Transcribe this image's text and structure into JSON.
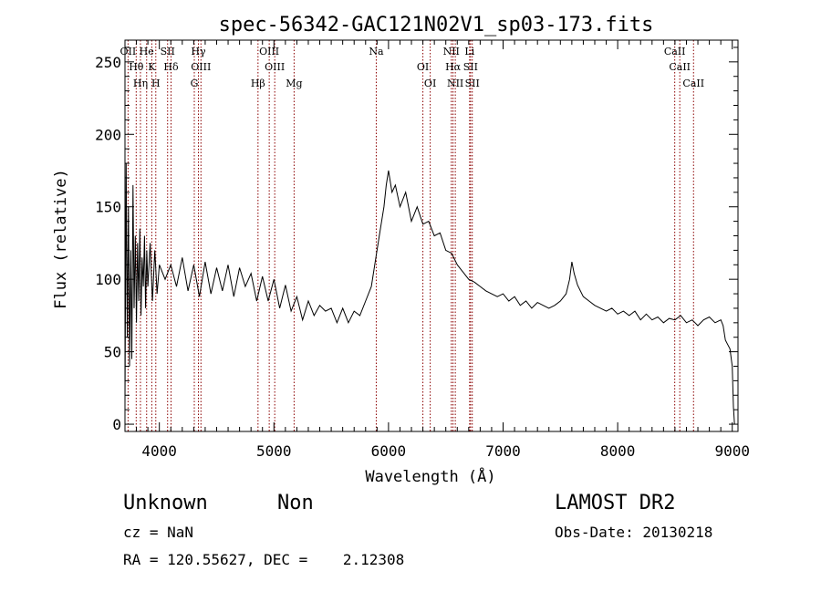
{
  "chart_data": {
    "type": "line",
    "title": "spec-56342-GAC121N02V1_sp03-173.fits",
    "xlabel": "Wavelength (Å)",
    "ylabel": "Flux (relative)",
    "xlim": [
      3700,
      9050
    ],
    "ylim": [
      -5,
      265
    ],
    "xticks": [
      4000,
      5000,
      6000,
      7000,
      8000,
      9000
    ],
    "yticks": [
      0,
      50,
      100,
      150,
      200,
      250
    ],
    "ytick_labels": [
      "0",
      "50",
      "100",
      "150",
      "200",
      "250"
    ],
    "grid": false,
    "line_color": "#000000",
    "marker_color": "#8b0000",
    "series": [
      {
        "x": [
          3700,
          3710,
          3720,
          3730,
          3740,
          3750,
          3760,
          3770,
          3780,
          3790,
          3800,
          3810,
          3820,
          3830,
          3840,
          3850,
          3860,
          3870,
          3880,
          3890,
          3900,
          3920,
          3940,
          3960,
          3980,
          4000,
          4050,
          4100,
          4150,
          4200,
          4250,
          4300,
          4350,
          4400,
          4450,
          4500,
          4550,
          4600,
          4650,
          4700,
          4750,
          4800,
          4850,
          4900,
          4950,
          5000,
          5050,
          5100,
          5150,
          5200,
          5250,
          5300,
          5350,
          5400,
          5450,
          5500,
          5550,
          5600,
          5650,
          5700,
          5750,
          5800,
          5850,
          5880,
          5920,
          5960,
          5980,
          6000,
          6030,
          6060,
          6100,
          6150,
          6200,
          6250,
          6300,
          6350,
          6400,
          6450,
          6500,
          6550,
          6600,
          6650,
          6700,
          6750,
          6800,
          6850,
          6900,
          6950,
          7000,
          7050,
          7100,
          7150,
          7200,
          7250,
          7300,
          7350,
          7400,
          7450,
          7500,
          7550,
          7580,
          7600,
          7620,
          7650,
          7700,
          7750,
          7800,
          7850,
          7900,
          7950,
          8000,
          8050,
          8100,
          8150,
          8200,
          8250,
          8300,
          8350,
          8400,
          8450,
          8500,
          8550,
          8600,
          8650,
          8700,
          8750,
          8800,
          8850,
          8900,
          8920,
          8940,
          8960,
          8980,
          9000,
          9010,
          9020
        ],
        "y": [
          15,
          180,
          60,
          150,
          40,
          120,
          45,
          165,
          80,
          130,
          70,
          125,
          85,
          135,
          75,
          115,
          95,
          130,
          80,
          120,
          95,
          125,
          85,
          120,
          90,
          110,
          100,
          110,
          95,
          115,
          92,
          110,
          88,
          112,
          90,
          108,
          92,
          110,
          88,
          108,
          95,
          104,
          85,
          102,
          85,
          100,
          80,
          96,
          78,
          88,
          72,
          85,
          75,
          82,
          78,
          80,
          70,
          80,
          70,
          78,
          75,
          85,
          95,
          110,
          130,
          150,
          165,
          175,
          160,
          165,
          150,
          160,
          140,
          150,
          138,
          140,
          130,
          132,
          120,
          118,
          110,
          105,
          100,
          98,
          95,
          92,
          90,
          88,
          90,
          85,
          88,
          82,
          85,
          80,
          84,
          82,
          80,
          82,
          85,
          90,
          100,
          112,
          104,
          96,
          88,
          85,
          82,
          80,
          78,
          80,
          76,
          78,
          75,
          78,
          72,
          76,
          72,
          74,
          70,
          73,
          72,
          75,
          70,
          72,
          68,
          72,
          74,
          70,
          72,
          68,
          58,
          55,
          52,
          40,
          12,
          0
        ]
      }
    ],
    "lines": [
      {
        "label": "OII",
        "x": 3727
      },
      {
        "label": "Hθ",
        "x": 3798
      },
      {
        "label": "Hη",
        "x": 3835
      },
      {
        "label": "He",
        "x": 3889
      },
      {
        "label": "K",
        "x": 3934
      },
      {
        "label": "H",
        "x": 3969
      },
      {
        "label": "SII",
        "x": 4072
      },
      {
        "label": "Hδ",
        "x": 4102
      },
      {
        "label": "G",
        "x": 4305
      },
      {
        "label": "Hγ",
        "x": 4341
      },
      {
        "label": "OIII",
        "x": 4363
      },
      {
        "label": "Hβ",
        "x": 4861
      },
      {
        "label": "OIII",
        "x": 4959
      },
      {
        "label": "OIII",
        "x": 5007
      },
      {
        "label": "Mg",
        "x": 5176
      },
      {
        "label": "Na",
        "x": 5893
      },
      {
        "label": "OI",
        "x": 6300
      },
      {
        "label": "OI",
        "x": 6364
      },
      {
        "label": "NII",
        "x": 6548
      },
      {
        "label": "Hα",
        "x": 6563
      },
      {
        "label": "NII",
        "x": 6583
      },
      {
        "label": "Li",
        "x": 6708
      },
      {
        "label": "SII",
        "x": 6716
      },
      {
        "label": "SII",
        "x": 6731
      },
      {
        "label": "CaII",
        "x": 8498
      },
      {
        "label": "CaII",
        "x": 8542
      },
      {
        "label": "CaII",
        "x": 8662
      }
    ]
  },
  "info": {
    "class": "Unknown",
    "subclass": "Non",
    "survey": "LAMOST DR2",
    "cz": "cz = NaN",
    "obs_date": "Obs-Date: 20130218",
    "radec": "RA = 120.55627, DEC =    2.12308"
  }
}
